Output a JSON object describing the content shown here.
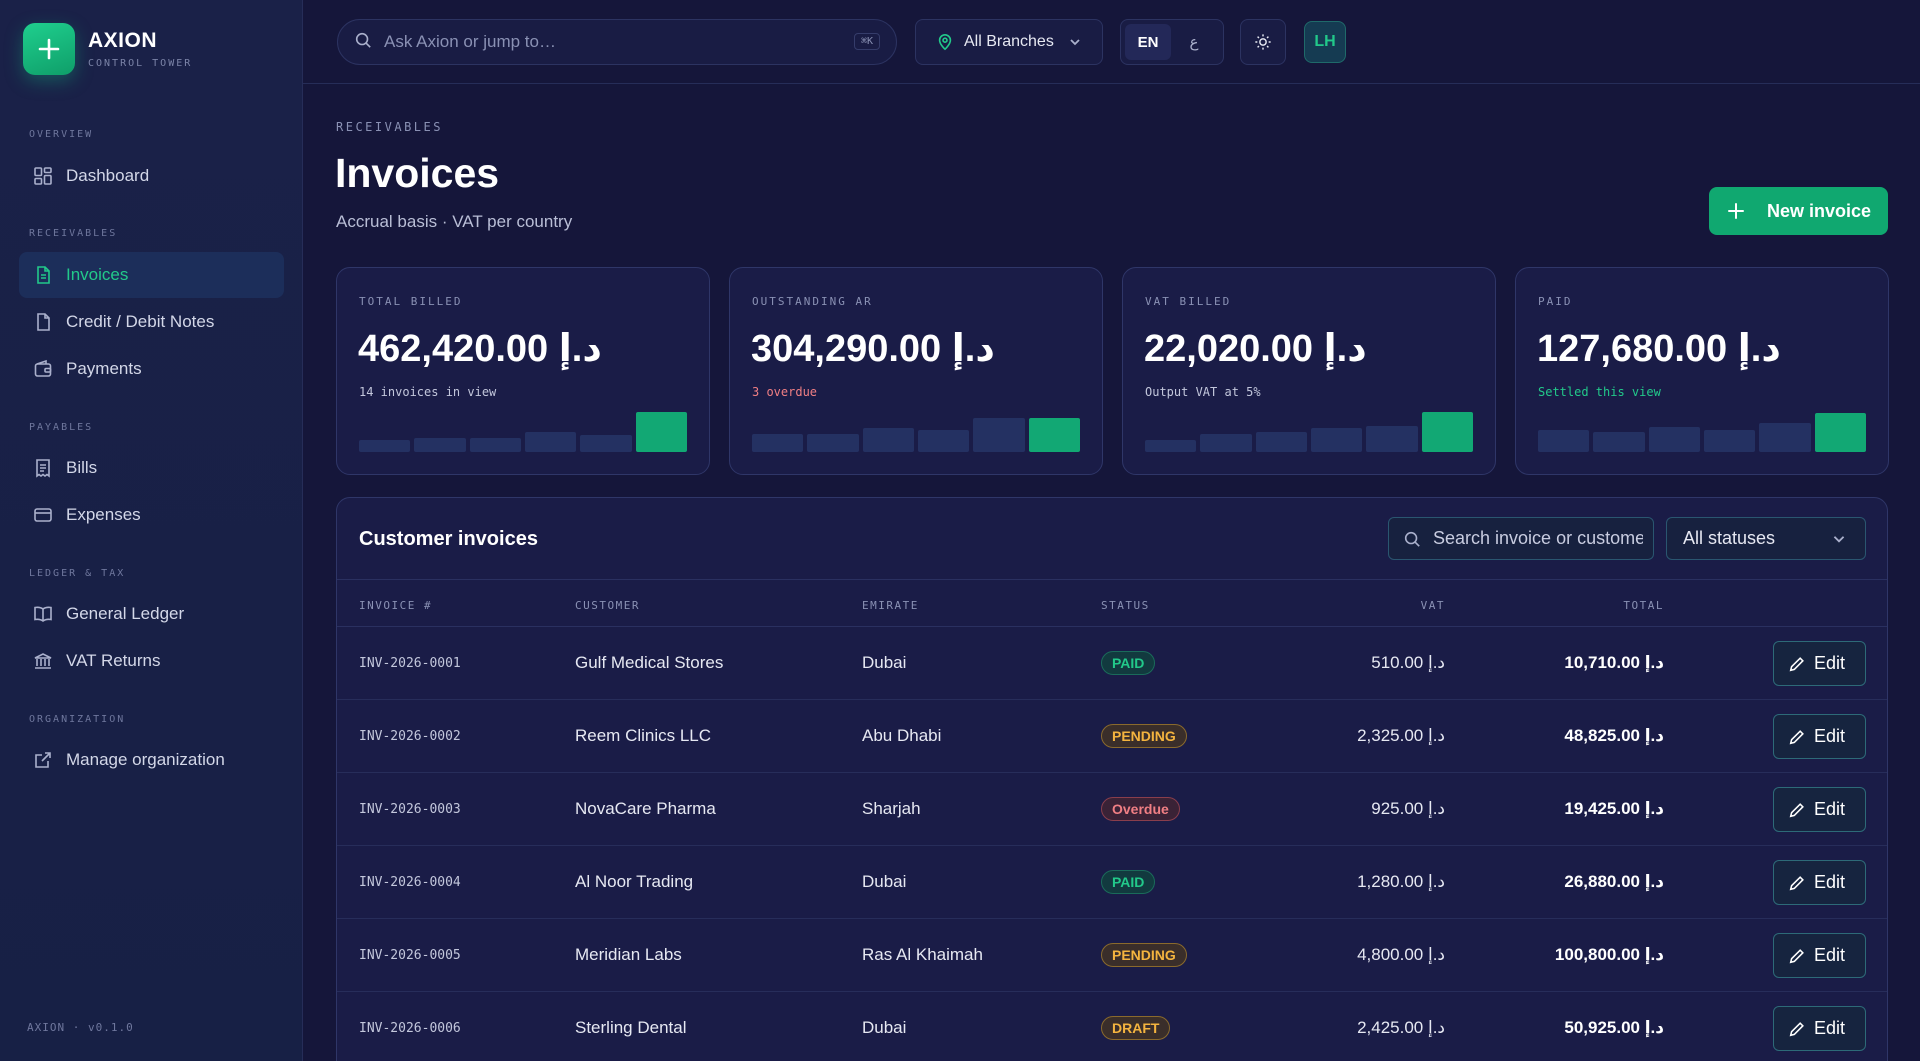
{
  "brand": {
    "name": "AXION",
    "subtitle": "CONTROL TOWER"
  },
  "sidebar": {
    "sections": [
      {
        "label": "OVERVIEW"
      },
      {
        "label": "RECEIVABLES"
      },
      {
        "label": "PAYABLES"
      },
      {
        "label": "LEDGER & TAX"
      },
      {
        "label": "ORGANIZATION"
      }
    ],
    "items": [
      {
        "label": "Dashboard",
        "icon": "dashboard-icon"
      },
      {
        "label": "Invoices",
        "icon": "document-icon",
        "active": true
      },
      {
        "label": "Credit / Debit Notes",
        "icon": "note-icon"
      },
      {
        "label": "Payments",
        "icon": "wallet-icon"
      },
      {
        "label": "Bills",
        "icon": "receipt-icon"
      },
      {
        "label": "Expenses",
        "icon": "card-icon"
      },
      {
        "label": "General Ledger",
        "icon": "book-icon"
      },
      {
        "label": "VAT Returns",
        "icon": "bank-icon"
      },
      {
        "label": "Manage organization",
        "icon": "external-link-icon"
      }
    ],
    "version": "AXION · v0.1.0"
  },
  "topbar": {
    "search_placeholder": "Ask Axion or jump to…",
    "shortcut": "⌘K",
    "branch": "All Branches",
    "lang_en": "EN",
    "lang_ar": "ع",
    "avatar": "LH"
  },
  "page": {
    "eyebrow": "RECEIVABLES",
    "title": "Invoices",
    "subtitle": "Accrual basis · VAT per country",
    "new_button": "New invoice"
  },
  "kpis": [
    {
      "label": "TOTAL BILLED",
      "value": "462,420.00 د.إ",
      "note": "14 invoices in view",
      "note_color": "#c3c7dc",
      "trend": [
        0.3,
        0.35,
        0.35,
        0.5,
        0.42,
        1.0
      ]
    },
    {
      "label": "OUTSTANDING AR",
      "value": "304,290.00 د.إ",
      "note": "3 overdue",
      "note_color": "#f07f84",
      "trend": [
        0.45,
        0.45,
        0.6,
        0.55,
        0.85,
        0.85
      ]
    },
    {
      "label": "VAT BILLED",
      "value": "22,020.00 د.إ",
      "note": "Output VAT at 5%",
      "note_color": "#c3c7dc",
      "trend": [
        0.3,
        0.45,
        0.5,
        0.6,
        0.65,
        1.0
      ]
    },
    {
      "label": "PAID",
      "value": "127,680.00 د.إ",
      "note": "Settled this view",
      "note_color": "#22c98a",
      "trend": [
        0.55,
        0.5,
        0.62,
        0.55,
        0.72,
        0.98
      ]
    }
  ],
  "table": {
    "title": "Customer invoices",
    "search_placeholder": "Search invoice or customer",
    "status_filter": "All statuses",
    "columns": [
      "INVOICE #",
      "CUSTOMER",
      "EMIRATE",
      "STATUS",
      "VAT",
      "TOTAL"
    ],
    "edit_label": "Edit",
    "rows": [
      {
        "invoice": "INV-2026-0001",
        "customer": "Gulf Medical Stores",
        "emirate": "Dubai",
        "status": "PAID",
        "vat": "510.00 د.إ",
        "total": "10,710.00 د.إ"
      },
      {
        "invoice": "INV-2026-0002",
        "customer": "Reem Clinics LLC",
        "emirate": "Abu Dhabi",
        "status": "PENDING",
        "vat": "2,325.00 د.إ",
        "total": "48,825.00 د.إ"
      },
      {
        "invoice": "INV-2026-0003",
        "customer": "NovaCare Pharma",
        "emirate": "Sharjah",
        "status": "Overdue",
        "vat": "925.00 د.إ",
        "total": "19,425.00 د.إ"
      },
      {
        "invoice": "INV-2026-0004",
        "customer": "Al Noor Trading",
        "emirate": "Dubai",
        "status": "PAID",
        "vat": "1,280.00 د.إ",
        "total": "26,880.00 د.إ"
      },
      {
        "invoice": "INV-2026-0005",
        "customer": "Meridian Labs",
        "emirate": "Ras Al Khaimah",
        "status": "PENDING",
        "vat": "4,800.00 د.إ",
        "total": "100,800.00 د.إ"
      },
      {
        "invoice": "INV-2026-0006",
        "customer": "Sterling Dental",
        "emirate": "Dubai",
        "status": "DRAFT",
        "vat": "2,425.00 د.إ",
        "total": "50,925.00 د.إ"
      }
    ]
  },
  "status_colors": {
    "PAID": {
      "fg": "#22c98a",
      "bg": "#123a3f",
      "border": "#1a6b5a"
    },
    "PENDING": {
      "fg": "#f4b43f",
      "bg": "#3a2e2a",
      "border": "#8a6a2c"
    },
    "Overdue": {
      "fg": "#f07f84",
      "bg": "#3a2236",
      "border": "#8a3e4c"
    },
    "DRAFT": {
      "fg": "#f4b43f",
      "bg": "#3a2e2a",
      "border": "#8a6a2c"
    }
  }
}
